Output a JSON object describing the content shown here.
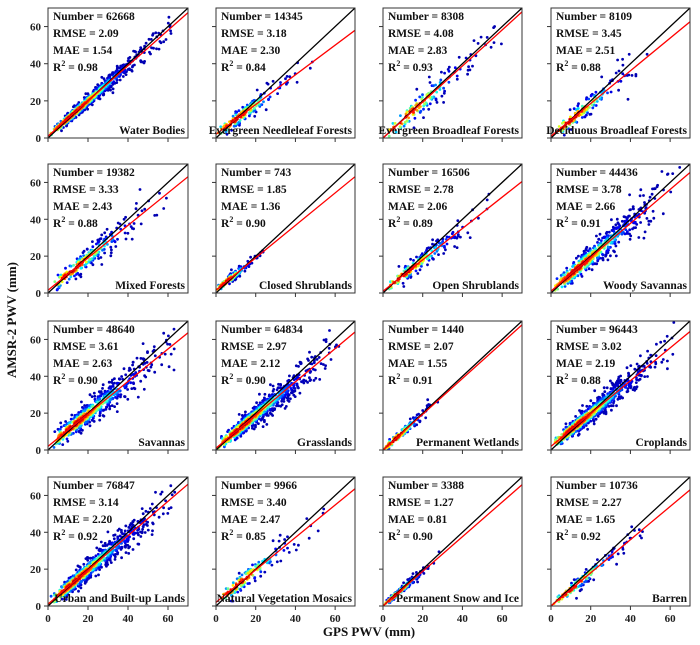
{
  "chart_data": {
    "type": "scatter",
    "subtype": "density-scatter panels",
    "xlabel": "GPS PWV (mm)",
    "ylabel": "AMSR-2 PWV (mm)",
    "xlim": [
      0,
      70
    ],
    "ylim": [
      0,
      70
    ],
    "xticks": [
      "0",
      "20",
      "40",
      "60"
    ],
    "yticks": [
      "0",
      "20",
      "40",
      "60"
    ],
    "grid": false,
    "colormap": "jet",
    "one_to_one_line_color": "#000000",
    "fit_line_color": "#ff0000",
    "stat_labels": {
      "number": "Number = ",
      "rmse": "RMSE = ",
      "mae": "MAE = ",
      "r2_prefix": "R",
      "r2_sup": "2",
      "r2_eq": " = "
    },
    "panels": [
      {
        "title": "Water Bodies",
        "number": "62668",
        "rmse": "2.09",
        "mae": "1.54",
        "r2": "0.98",
        "fit": {
          "slope": 0.95,
          "intercept": 1.0
        },
        "x_extent": 62,
        "spread": 2.0
      },
      {
        "title": "Evergreen Needleleaf Forests",
        "number": "14345",
        "rmse": "3.18",
        "mae": "2.30",
        "r2": "0.84",
        "fit": {
          "slope": 0.8,
          "intercept": 2.0
        },
        "x_extent": 50,
        "spread": 3.0
      },
      {
        "title": "Evergreen Broadleaf Forests",
        "number": "8308",
        "rmse": "4.08",
        "mae": "2.83",
        "r2": "0.93",
        "fit": {
          "slope": 0.97,
          "intercept": 0.0
        },
        "x_extent": 62,
        "spread": 4.0
      },
      {
        "title": "Deciduous Broadleaf Forests",
        "number": "8109",
        "rmse": "3.45",
        "mae": "2.51",
        "r2": "0.88",
        "fit": {
          "slope": 0.88,
          "intercept": 1.0
        },
        "x_extent": 52,
        "spread": 3.5
      },
      {
        "title": "Mixed Forests",
        "number": "19382",
        "rmse": "3.33",
        "mae": "2.43",
        "r2": "0.88",
        "fit": {
          "slope": 0.88,
          "intercept": 1.5
        },
        "x_extent": 60,
        "spread": 3.3
      },
      {
        "title": "Closed Shrublands",
        "number": "743",
        "rmse": "1.85",
        "mae": "1.36",
        "r2": "0.90",
        "fit": {
          "slope": 0.88,
          "intercept": 1.5
        },
        "x_extent": 25,
        "spread": 1.8
      },
      {
        "title": "Open Shrublands",
        "number": "16506",
        "rmse": "2.78",
        "mae": "2.06",
        "r2": "0.89",
        "fit": {
          "slope": 0.85,
          "intercept": 1.0
        },
        "x_extent": 55,
        "spread": 2.8
      },
      {
        "title": "Woody Savannas",
        "number": "44436",
        "rmse": "3.78",
        "mae": "2.66",
        "r2": "0.91",
        "fit": {
          "slope": 0.92,
          "intercept": 1.0
        },
        "x_extent": 65,
        "spread": 3.8
      },
      {
        "title": "Savannas",
        "number": "48640",
        "rmse": "3.61",
        "mae": "2.63",
        "r2": "0.90",
        "fit": {
          "slope": 0.88,
          "intercept": 2.0
        },
        "x_extent": 65,
        "spread": 3.6
      },
      {
        "title": "Grasslands",
        "number": "64834",
        "rmse": "2.97",
        "mae": "2.12",
        "r2": "0.90",
        "fit": {
          "slope": 0.9,
          "intercept": 1.0
        },
        "x_extent": 63,
        "spread": 3.0
      },
      {
        "title": "Permanent Wetlands",
        "number": "1440",
        "rmse": "2.07",
        "mae": "1.55",
        "r2": "0.91",
        "fit": {
          "slope": 0.97,
          "intercept": 0.0
        },
        "x_extent": 30,
        "spread": 2.0
      },
      {
        "title": "Croplands",
        "number": "96443",
        "rmse": "3.02",
        "mae": "2.19",
        "r2": "0.88",
        "fit": {
          "slope": 0.89,
          "intercept": 2.0
        },
        "x_extent": 62,
        "spread": 3.0
      },
      {
        "title": "Urban and Built-up Lands",
        "number": "76847",
        "rmse": "3.14",
        "mae": "2.20",
        "r2": "0.92",
        "fit": {
          "slope": 0.93,
          "intercept": 1.0
        },
        "x_extent": 65,
        "spread": 3.1
      },
      {
        "title": "Natural Vegetation Mosaics",
        "number": "9966",
        "rmse": "3.40",
        "mae": "2.47",
        "r2": "0.85",
        "fit": {
          "slope": 0.88,
          "intercept": 2.0
        },
        "x_extent": 55,
        "spread": 3.4
      },
      {
        "title": "Permanent Snow and Ice",
        "number": "3388",
        "rmse": "1.27",
        "mae": "0.81",
        "r2": "0.90",
        "fit": {
          "slope": 0.94,
          "intercept": 0.0
        },
        "x_extent": 30,
        "spread": 1.3
      },
      {
        "title": "Barren",
        "number": "10736",
        "rmse": "2.27",
        "mae": "1.65",
        "r2": "0.92",
        "fit": {
          "slope": 0.9,
          "intercept": 0.0
        },
        "x_extent": 50,
        "spread": 2.3
      }
    ]
  }
}
